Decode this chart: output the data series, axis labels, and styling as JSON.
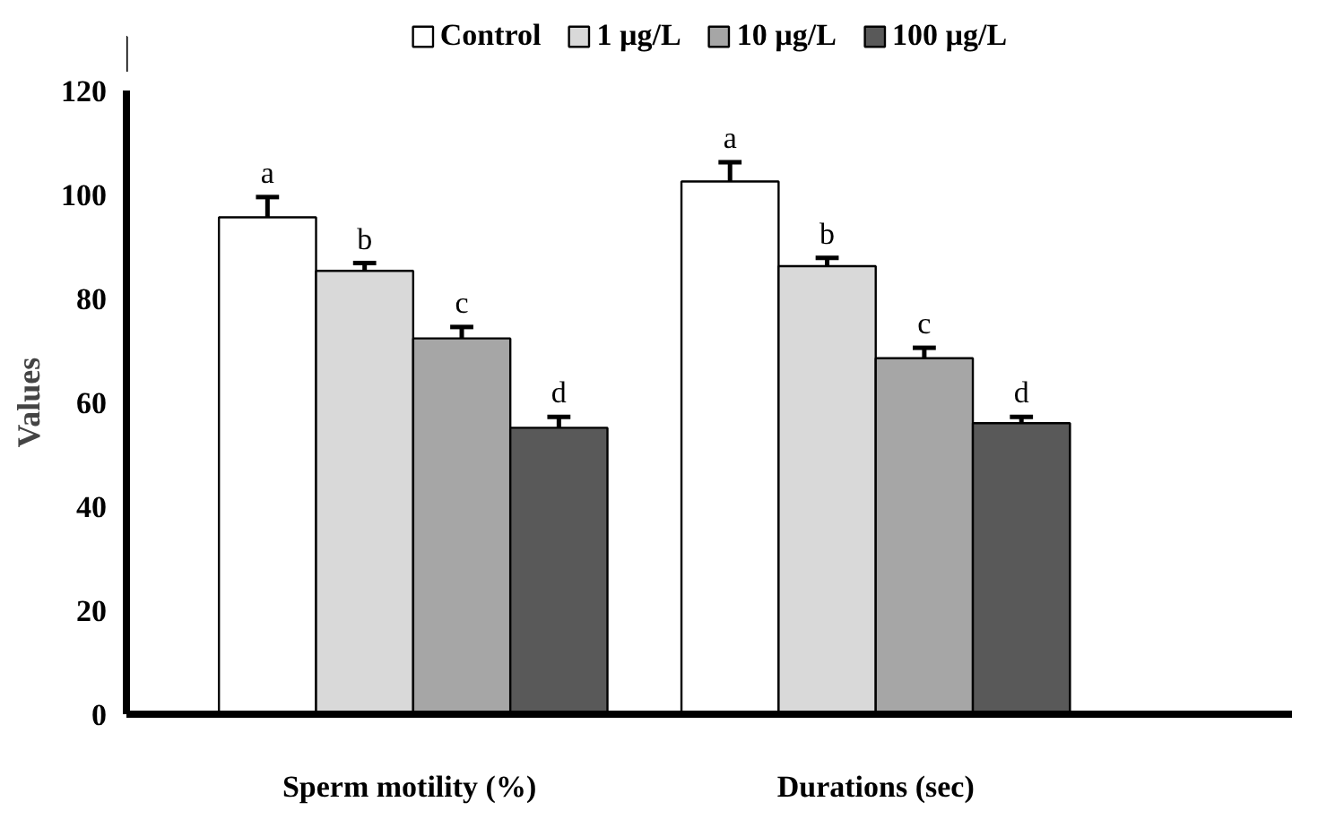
{
  "chart_data": {
    "type": "bar",
    "ylabel": "Values",
    "categories": [
      "Sperm motility  (%)",
      "Durations (sec)"
    ],
    "series": [
      {
        "name": "Control",
        "color": "#ffffff",
        "values": [
          95.6,
          102.5
        ],
        "errors": [
          [
            95.6,
            99.5
          ],
          [
            102.5,
            106.2
          ]
        ],
        "value_labels": [
          "a",
          "a"
        ]
      },
      {
        "name": "1 µg/L",
        "color": "#d9d9d9",
        "values": [
          85.3,
          86.2
        ],
        "errors": [
          [
            85.3,
            86.8
          ],
          [
            86.2,
            87.8
          ]
        ],
        "value_labels": [
          "b",
          "b"
        ]
      },
      {
        "name": "10 µg/L",
        "color": "#a6a6a6",
        "values": [
          72.3,
          68.5
        ],
        "errors": [
          [
            72.3,
            74.5
          ],
          [
            68.5,
            70.5
          ]
        ],
        "value_labels": [
          "c",
          "c"
        ]
      },
      {
        "name": "100 µg/L",
        "color": "#595959",
        "values": [
          55.1,
          56.0
        ],
        "errors": [
          [
            55.1,
            57.2
          ],
          [
            56.0,
            57.2
          ]
        ],
        "value_labels": [
          "d",
          "d"
        ]
      }
    ],
    "ylim": [
      0,
      120
    ],
    "yticks": [
      0,
      20,
      40,
      60,
      80,
      100,
      120
    ],
    "grid": false,
    "legend": "top"
  }
}
